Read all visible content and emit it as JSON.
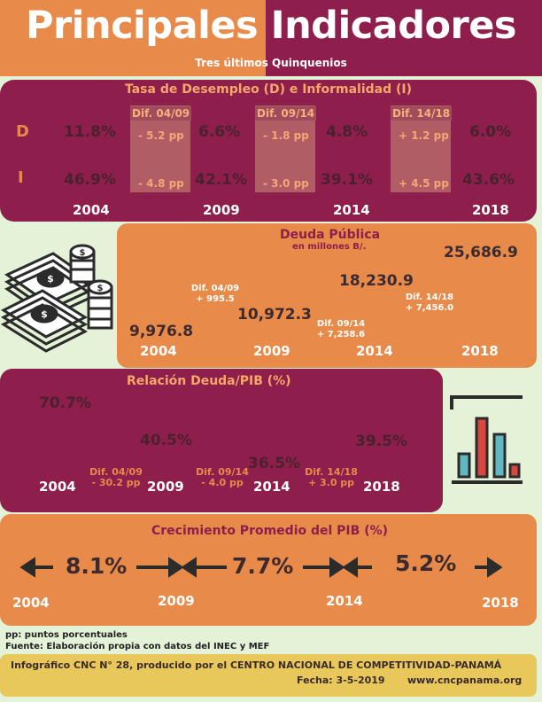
{
  "header": {
    "title": "Principales Indicadores",
    "subtitle": "Tres últimos Quinquenios"
  },
  "desempleo": {
    "title": "Tasa de Desempleo (D) e Informalidad (I)",
    "row_d_label": "D",
    "row_i_label": "I",
    "d_values": [
      "11.8%",
      "6.6%",
      "4.8%",
      "6.0%"
    ],
    "i_values": [
      "46.9%",
      "42.1%",
      "39.1%",
      "43.6%"
    ],
    "difs": [
      {
        "label": "Dif. 04/09",
        "d": "- 5.2 pp",
        "i": "- 4.8 pp"
      },
      {
        "label": "Dif. 09/14",
        "d": "- 1.8 pp",
        "i": "- 3.0 pp"
      },
      {
        "label": "Dif. 14/18",
        "d": "+ 1.2 pp",
        "i": "+ 4.5 pp"
      }
    ],
    "years": [
      "2004",
      "2009",
      "2014",
      "2018"
    ]
  },
  "deuda": {
    "title": "Deuda Pública",
    "subtitle": "en millones B/.",
    "values": [
      "9,976.8",
      "10,972.3",
      "18,230.9",
      "25,686.9"
    ],
    "difs": [
      {
        "label": "Dif. 04/09",
        "value": "+ 995.5"
      },
      {
        "label": "Dif. 09/14",
        "value": "+ 7,258.6"
      },
      {
        "label": "Dif. 14/18",
        "value": "+ 7,456.0"
      }
    ],
    "years": [
      "2004",
      "2009",
      "2014",
      "2018"
    ]
  },
  "relacion": {
    "title": "Relación Deuda/PIB (%)",
    "values": [
      "70.7%",
      "40.5%",
      "36.5%",
      "39.5%"
    ],
    "difs": [
      {
        "label": "Dif. 04/09",
        "value": "- 30.2 pp"
      },
      {
        "label": "Dif. 09/14",
        "value": "- 4.0 pp"
      },
      {
        "label": "Dif. 14/18",
        "value": "+ 3.0 pp"
      }
    ],
    "years": [
      "2004",
      "2009",
      "2014",
      "2018"
    ]
  },
  "crecimiento": {
    "title": "Crecimiento Promedio del PIB (%)",
    "values": [
      "8.1%",
      "7.7%",
      "5.2%"
    ],
    "years": [
      "2004",
      "2009",
      "2014",
      "2018"
    ]
  },
  "notes": {
    "pp": "pp: puntos porcentuales",
    "fuente": "Fuente: Elaboración propia con datos del INEC y MEF"
  },
  "footer": {
    "line1": "Infográfico CNC N° 28, producido por el  CENTRO NACIONAL DE COMPETITIVIDAD-PANAMÁ",
    "fecha": "Fecha: 3-5-2019",
    "web": "www.cncpanama.org"
  },
  "colors": {
    "orange": "#e88a4a",
    "maroon": "#8e1e4b",
    "bg": "#e4f2d8",
    "footer": "#e8c85a"
  },
  "icons": [
    "money-stack-icon",
    "bar-chart-icon",
    "arrow-left-icon",
    "arrow-right-icon"
  ]
}
